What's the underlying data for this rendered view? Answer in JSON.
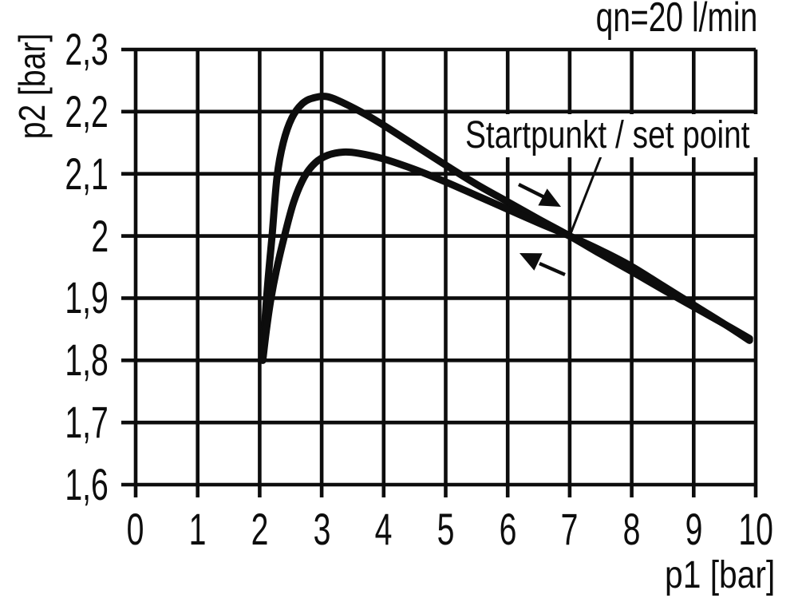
{
  "colors": {
    "ink": "#0d0d0d",
    "background": "#ffffff"
  },
  "chart_data": {
    "type": "line",
    "flow_annotation": "qn=20 l/min",
    "xlabel": "p1 [bar]",
    "ylabel": "p2 [bar]",
    "xlim": [
      0,
      10
    ],
    "ylim": [
      1.6,
      2.3
    ],
    "grid": true,
    "x_tick_values": [
      0,
      1,
      2,
      3,
      4,
      5,
      6,
      7,
      8,
      9,
      10
    ],
    "x_tick_labels": [
      "0",
      "1",
      "2",
      "3",
      "4",
      "5",
      "6",
      "7",
      "8",
      "9",
      "10"
    ],
    "y_tick_values": [
      2.3,
      2.2,
      2.1,
      2.0,
      1.9,
      1.8,
      1.7,
      1.6
    ],
    "y_tick_labels": [
      "2,3",
      "2,2",
      "2,1",
      "2",
      "1,9",
      "1,8",
      "1,7",
      "1,6"
    ],
    "set_point": {
      "label": "Startpunkt / set point",
      "p1": 7,
      "p2": 2.0
    },
    "direction_arrows": [
      {
        "icon": "arrow-right-icon",
        "direction": "right-down",
        "position": "above curves"
      },
      {
        "icon": "arrow-left-icon",
        "direction": "left-up",
        "position": "below curves"
      }
    ],
    "series": [
      {
        "name": "upper-hysteresis-branch",
        "points": [
          [
            2.05,
            1.8
          ],
          [
            2.09,
            1.87
          ],
          [
            2.14,
            1.935
          ],
          [
            2.2,
            2.0
          ],
          [
            2.28,
            2.095
          ],
          [
            2.38,
            2.15
          ],
          [
            2.52,
            2.19
          ],
          [
            2.7,
            2.214
          ],
          [
            2.9,
            2.223
          ],
          [
            3.1,
            2.224
          ],
          [
            3.35,
            2.214
          ],
          [
            3.7,
            2.196
          ],
          [
            4.0,
            2.178
          ],
          [
            4.5,
            2.146
          ],
          [
            5.0,
            2.114
          ],
          [
            5.5,
            2.083
          ],
          [
            6.0,
            2.055
          ],
          [
            6.5,
            2.027
          ],
          [
            7.0,
            2.0
          ],
          [
            7.5,
            1.971
          ],
          [
            8.0,
            1.943
          ],
          [
            8.5,
            1.914
          ],
          [
            9.0,
            1.886
          ],
          [
            9.5,
            1.858
          ],
          [
            9.9,
            1.835
          ]
        ]
      },
      {
        "name": "lower-hysteresis-branch",
        "points": [
          [
            2.05,
            1.8
          ],
          [
            2.11,
            1.85
          ],
          [
            2.18,
            1.898
          ],
          [
            2.27,
            1.945
          ],
          [
            2.4,
            2.0
          ],
          [
            2.55,
            2.055
          ],
          [
            2.72,
            2.095
          ],
          [
            2.9,
            2.118
          ],
          [
            3.1,
            2.13
          ],
          [
            3.35,
            2.135
          ],
          [
            3.6,
            2.133
          ],
          [
            4.0,
            2.124
          ],
          [
            4.5,
            2.107
          ],
          [
            5.0,
            2.087
          ],
          [
            5.5,
            2.065
          ],
          [
            6.0,
            2.043
          ],
          [
            6.5,
            2.021
          ],
          [
            7.0,
            2.0
          ],
          [
            7.5,
            1.977
          ],
          [
            8.0,
            1.951
          ],
          [
            8.5,
            1.92
          ],
          [
            9.0,
            1.889
          ],
          [
            9.5,
            1.858
          ],
          [
            9.9,
            1.832
          ]
        ]
      }
    ]
  }
}
